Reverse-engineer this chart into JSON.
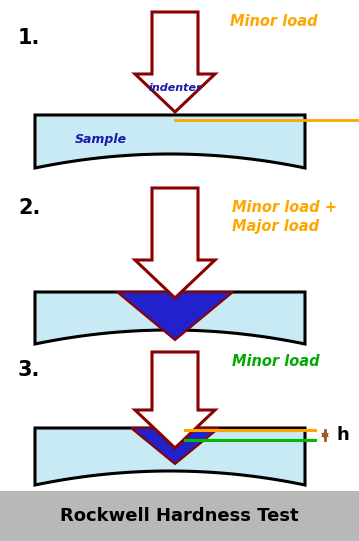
{
  "bg_color": "#ffffff",
  "footer_color": "#b8b8b8",
  "title": "Rockwell Hardness Test",
  "title_color": "#000000",
  "arrow_color": "#8B0000",
  "sample_fill": "#c8eaf5",
  "sample_edge": "#000000",
  "indenter_fill": "#ffffff",
  "blue_fill": "#2222cc",
  "orange_line": "#FFA500",
  "green_line": "#00bb00",
  "brown_color": "#a05828",
  "label_color": "#000000",
  "orange_text": "#FFA500",
  "green_text": "#00aa00",
  "label1": "1.",
  "label2": "2.",
  "label3": "3.",
  "text_minor": "Minor load",
  "text_minor_major": "Minor load +\nMajor load",
  "text_minor3": "Minor load",
  "text_indenter": "indenter",
  "text_sample": "Sample",
  "text_h": "h",
  "fig_w": 3.59,
  "fig_h": 5.41,
  "dpi": 100
}
